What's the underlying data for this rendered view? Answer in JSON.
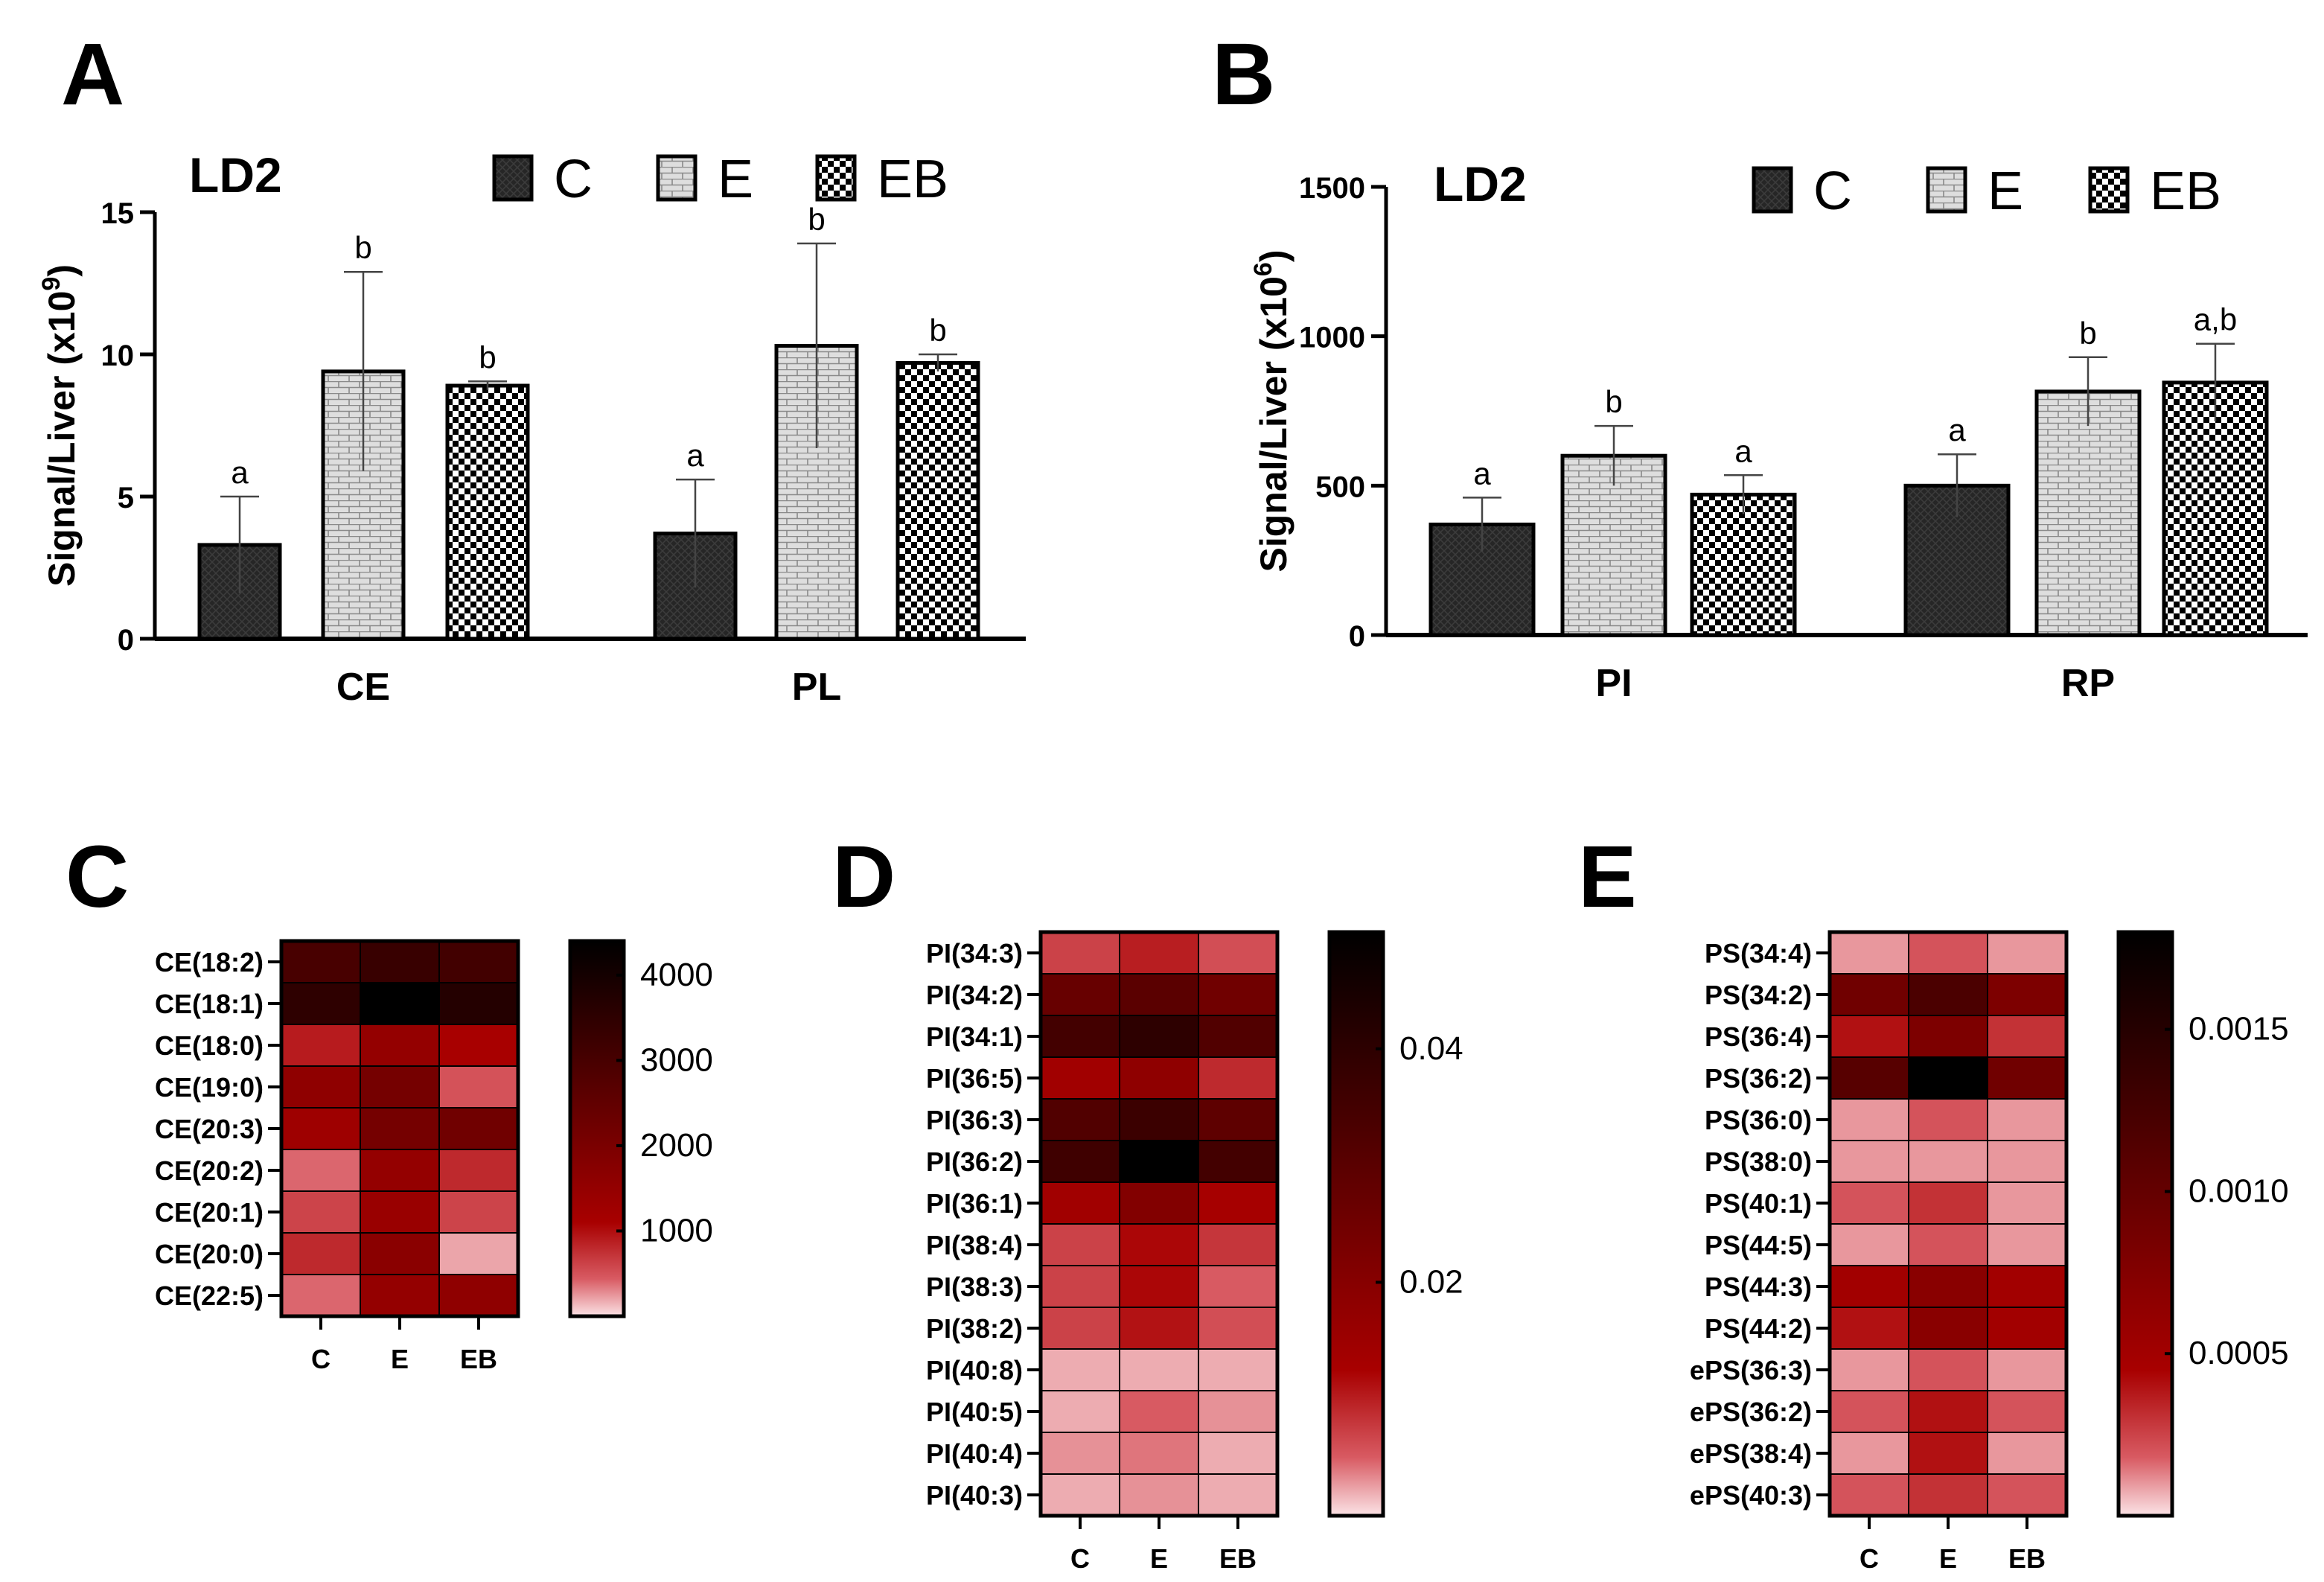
{
  "colors": {
    "dark": "#222222",
    "pattern_light": "#d8d8d8",
    "white": "#ffffff",
    "heat_low": "#fbe3e6",
    "heat_mid": "#a80000",
    "heat_high": "#000000"
  },
  "chart_data": [
    {
      "panel": "A",
      "type": "bar",
      "title": "LD2",
      "ylabel_main": "Signal/Liver (x10",
      "ylabel_exp": "9",
      "ylabel_close": ")",
      "ylim": [
        0,
        15
      ],
      "yticks": [
        "0",
        "5",
        "10",
        "15"
      ],
      "ytick_values": [
        0,
        5,
        10,
        15
      ],
      "categories": [
        "CE",
        "PL"
      ],
      "legend": [
        "C",
        "E",
        "EB"
      ],
      "series": [
        {
          "name": "C",
          "values": [
            3.3,
            3.7
          ],
          "err": [
            1.7,
            1.9
          ],
          "sig": [
            "a",
            "a"
          ]
        },
        {
          "name": "E",
          "values": [
            9.4,
            10.3
          ],
          "err": [
            3.5,
            3.6
          ],
          "sig": [
            "b",
            "b"
          ]
        },
        {
          "name": "EB",
          "values": [
            8.9,
            9.7
          ],
          "err": [
            0.15,
            0.3
          ],
          "sig": [
            "b",
            "b"
          ]
        }
      ]
    },
    {
      "panel": "B",
      "type": "bar",
      "title": "LD2",
      "ylabel_main": "Signal/Liver (x10",
      "ylabel_exp": "6",
      "ylabel_close": ")",
      "ylim": [
        0,
        1500
      ],
      "yticks": [
        "0",
        "500",
        "1000",
        "1500"
      ],
      "ytick_values": [
        0,
        500,
        1000,
        1500
      ],
      "categories": [
        "PI",
        "RP"
      ],
      "legend": [
        "C",
        "E",
        "EB"
      ],
      "series": [
        {
          "name": "C",
          "values": [
            370,
            500
          ],
          "err": [
            90,
            105
          ],
          "sig": [
            "a",
            "a"
          ]
        },
        {
          "name": "E",
          "values": [
            600,
            815
          ],
          "err": [
            100,
            115
          ],
          "sig": [
            "b",
            "b"
          ]
        },
        {
          "name": "EB",
          "values": [
            470,
            845
          ],
          "err": [
            65,
            130
          ],
          "sig": [
            "a",
            "a,b"
          ]
        }
      ]
    },
    {
      "panel": "C",
      "type": "heatmap",
      "rows": [
        "CE(18:2)",
        "CE(18:1)",
        "CE(18:0)",
        "CE(19:0)",
        "CE(20:3)",
        "CE(20:2)",
        "CE(20:1)",
        "CE(20:0)",
        "CE(22:5)"
      ],
      "columns": [
        "C",
        "E",
        "EB"
      ],
      "values": [
        [
          3000,
          3300,
          3100
        ],
        [
          3500,
          4400,
          3700
        ],
        [
          900,
          1500,
          1100
        ],
        [
          1600,
          2100,
          500
        ],
        [
          1300,
          2100,
          2200
        ],
        [
          400,
          1500,
          800
        ],
        [
          600,
          1400,
          600
        ],
        [
          800,
          1700,
          200
        ],
        [
          400,
          1500,
          1600
        ]
      ],
      "vmin": 0,
      "vmax": 4400,
      "colorbar_ticks": [
        "1000",
        "2000",
        "3000",
        "4000"
      ],
      "colorbar_tick_values": [
        1000,
        2000,
        3000,
        4000
      ]
    },
    {
      "panel": "D",
      "type": "heatmap",
      "rows": [
        "PI(34:3)",
        "PI(34:2)",
        "PI(34:1)",
        "PI(36:5)",
        "PI(36:3)",
        "PI(36:2)",
        "PI(36:1)",
        "PI(38:4)",
        "PI(38:3)",
        "PI(38:2)",
        "PI(40:8)",
        "PI(40:5)",
        "PI(40:4)",
        "PI(40:3)"
      ],
      "columns": [
        "C",
        "E",
        "EB"
      ],
      "values": [
        [
          0.007,
          0.01,
          0.006
        ],
        [
          0.027,
          0.03,
          0.025
        ],
        [
          0.035,
          0.04,
          0.032
        ],
        [
          0.014,
          0.018,
          0.009
        ],
        [
          0.032,
          0.037,
          0.029
        ],
        [
          0.036,
          0.05,
          0.035
        ],
        [
          0.014,
          0.021,
          0.013
        ],
        [
          0.007,
          0.012,
          0.008
        ],
        [
          0.007,
          0.012,
          0.005
        ],
        [
          0.007,
          0.011,
          0.006
        ],
        [
          0.002,
          0.002,
          0.002
        ],
        [
          0.002,
          0.005,
          0.003
        ],
        [
          0.003,
          0.004,
          0.002
        ],
        [
          0.002,
          0.003,
          0.002
        ]
      ],
      "vmin": 0,
      "vmax": 0.05,
      "colorbar_ticks": [
        "0.02",
        "0.04"
      ],
      "colorbar_tick_values": [
        0.02,
        0.04
      ]
    },
    {
      "panel": "E",
      "type": "heatmap",
      "rows": [
        "PS(34:4)",
        "PS(34:2)",
        "PS(36:4)",
        "PS(36:2)",
        "PS(36:0)",
        "PS(38:0)",
        "PS(40:1)",
        "PS(44:5)",
        "PS(44:3)",
        "PS(44:2)",
        "ePS(36:3)",
        "ePS(36:2)",
        "ePS(38:4)",
        "ePS(40:3)"
      ],
      "columns": [
        "C",
        "E",
        "EB"
      ],
      "values": [
        [
          0.0001,
          0.0002,
          0.0001
        ],
        [
          0.0009,
          0.0012,
          0.0008
        ],
        [
          0.0004,
          0.0008,
          0.0003
        ],
        [
          0.0011,
          0.0018,
          0.0009
        ],
        [
          0.0001,
          0.0002,
          0.0001
        ],
        [
          0.0001,
          0.0001,
          0.0001
        ],
        [
          0.0002,
          0.0003,
          0.0001
        ],
        [
          0.0001,
          0.0002,
          0.0001
        ],
        [
          0.0005,
          0.0007,
          0.0005
        ],
        [
          0.0004,
          0.0007,
          0.0005
        ],
        [
          0.0001,
          0.0002,
          0.0001
        ],
        [
          0.0002,
          0.0004,
          0.0002
        ],
        [
          0.0001,
          0.0004,
          0.0001
        ],
        [
          0.0002,
          0.0003,
          0.0002
        ]
      ],
      "vmin": 0,
      "vmax": 0.0018,
      "colorbar_ticks": [
        "0.0005",
        "0.0010",
        "0.0015"
      ],
      "colorbar_tick_values": [
        0.0005,
        0.001,
        0.0015
      ]
    }
  ]
}
